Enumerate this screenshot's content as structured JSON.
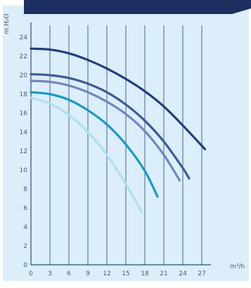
{
  "chart_data": {
    "type": "line",
    "xlabel": "m³/h",
    "ylabel": "m H₂O",
    "xlim": [
      0,
      30
    ],
    "ylim": [
      0,
      25
    ],
    "x_ticks": [
      0,
      3,
      6,
      9,
      12,
      15,
      18,
      21,
      24,
      27
    ],
    "y_ticks": [
      0,
      2,
      4,
      6,
      8,
      10,
      12,
      14,
      16,
      18,
      20,
      22,
      24
    ],
    "grid": "vertical",
    "series": [
      {
        "color": "#253d7c",
        "x": [
          0,
          3,
          6,
          9,
          12,
          15,
          18,
          21,
          24,
          27.5
        ],
        "y": [
          22.8,
          22.7,
          22.3,
          21.6,
          20.7,
          19.6,
          18.3,
          16.7,
          14.7,
          12.2
        ]
      },
      {
        "color": "#3f5a95",
        "x": [
          0,
          3,
          6,
          9,
          12,
          15,
          18,
          21,
          24,
          25
        ],
        "y": [
          20.1,
          20.0,
          19.7,
          19.1,
          18.2,
          16.9,
          15.2,
          13.0,
          10.2,
          9.1
        ]
      },
      {
        "color": "#7585bb",
        "x": [
          0,
          3,
          6,
          9,
          12,
          15,
          18,
          21,
          23.5
        ],
        "y": [
          19.4,
          19.3,
          18.9,
          18.2,
          17.2,
          15.9,
          14.1,
          11.6,
          8.9
        ]
      },
      {
        "color": "#1c98bf",
        "x": [
          0,
          3,
          6,
          9,
          12,
          15,
          18,
          20
        ],
        "y": [
          18.2,
          18.0,
          17.4,
          16.3,
          14.8,
          12.7,
          9.9,
          7.2
        ]
      },
      {
        "color": "#aee0ef",
        "x": [
          0,
          3,
          6,
          9,
          12,
          15,
          17.5
        ],
        "y": [
          17.6,
          17.0,
          15.8,
          14.0,
          11.6,
          8.5,
          5.6
        ]
      }
    ]
  }
}
